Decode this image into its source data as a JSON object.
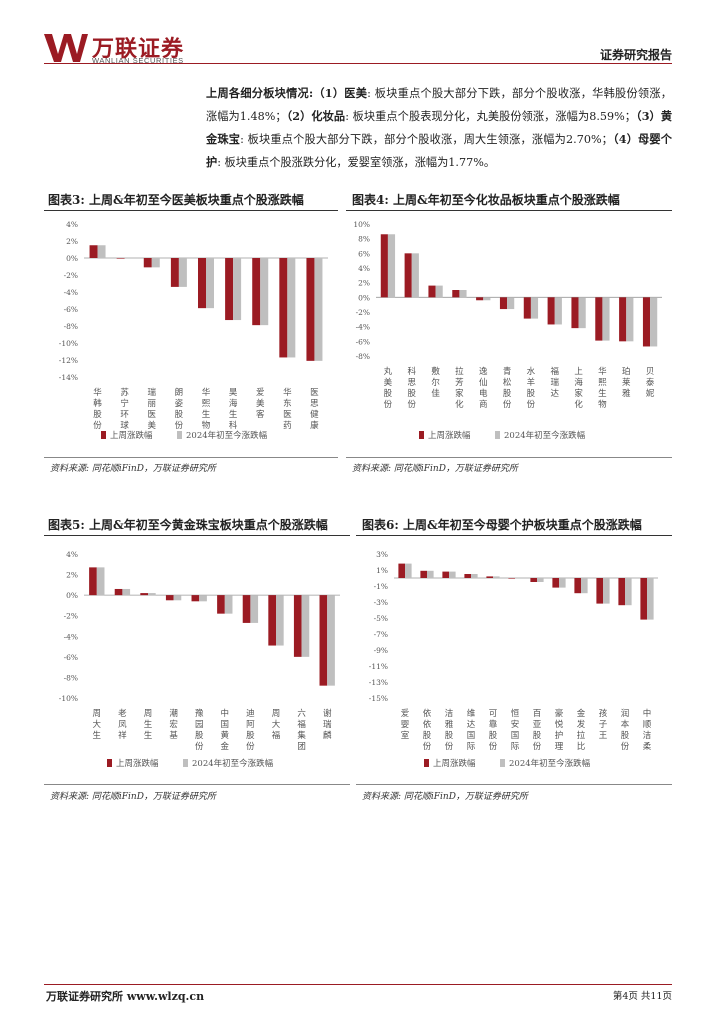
{
  "header": {
    "logo_cn": "万联证券",
    "logo_en": "WANLIAN SECURITIES",
    "report_type": "证券研究报告"
  },
  "colors": {
    "brand": "#9b1b23",
    "series_week": "#9b1b23",
    "series_ytd": "#bfbfbf"
  },
  "summary": {
    "lead": "上周各细分板块情况:",
    "p1_tag": "（1）医美",
    "p1_text": ": 板块重点个股大部分下跌，部分个股收涨，华韩股份领涨，涨幅为1.48%；",
    "p2_tag": "（2）化妆品",
    "p2_text": ": 板块重点个股表现分化，丸美股份领涨，涨幅为8.59%；",
    "p3_tag": "（3）黄金珠宝",
    "p3_text": ": 板块重点个股大部分下跌，部分个股收涨，周大生领涨，涨幅为2.70%；",
    "p4_tag": "（4）母婴个护",
    "p4_text": ": 板块重点个股涨跌分化，爱婴室领涨，涨幅为1.77%。"
  },
  "figures": [
    {
      "title": "图表3:  上周&年初至今医美板块重点个股涨跌幅",
      "source": "资料来源: 同花顺iFinD，万联证券研究所"
    },
    {
      "title": "图表4:  上周&年初至今化妆品板块重点个股涨跌幅",
      "source": "资料来源: 同花顺iFinD，万联证券研究所"
    },
    {
      "title": "图表5:  上周&年初至今黄金珠宝板块重点个股涨跌幅",
      "source": "资料来源: 同花顺iFinD，万联证券研究所"
    },
    {
      "title": "图表6:  上周&年初至今母婴个护板块重点个股涨跌幅",
      "source": "资料来源: 同花顺iFinD，万联证券研究所"
    }
  ],
  "chart_data": [
    {
      "type": "bar",
      "title": "上周&年初至今医美板块重点个股涨跌幅",
      "categories": [
        "华韩股份",
        "苏宁环球",
        "瑞丽医美",
        "朗姿股份",
        "华熙生物",
        "昊海生科",
        "爱美客",
        "华东医药",
        "医思健康"
      ],
      "series": [
        {
          "name": "上周涨跌幅",
          "values": [
            1.5,
            0.0,
            -1.1,
            -3.4,
            -5.9,
            -7.3,
            -7.9,
            -11.7,
            -12.1
          ]
        },
        {
          "name": "2024年初至今涨跌幅",
          "values": [
            1.5,
            0.0,
            -1.1,
            -3.4,
            -5.9,
            -7.3,
            -7.9,
            -11.7,
            -12.1
          ]
        }
      ],
      "ylim": [
        -14,
        4
      ],
      "yticks": [
        4,
        2,
        0,
        -2,
        -4,
        -6,
        -8,
        -10,
        -12,
        -14
      ],
      "ytick_labels": [
        "4%",
        "2%",
        "0%",
        "-2%",
        "-4%",
        "-6%",
        "-8%",
        "-10%",
        "-12%",
        "-14%"
      ],
      "legend": "bottom"
    },
    {
      "type": "bar",
      "title": "上周&年初至今化妆品板块重点个股涨跌幅",
      "categories": [
        "丸美股份",
        "科思股份",
        "敷尔佳",
        "拉芳家化",
        "逸仙电商",
        "青松股份",
        "水羊股份",
        "福瑞达",
        "上海家化",
        "华熙生物",
        "珀莱雅",
        "贝泰妮"
      ],
      "series": [
        {
          "name": "上周涨跌幅",
          "values": [
            8.6,
            6.0,
            1.6,
            1.0,
            -0.4,
            -1.6,
            -2.9,
            -3.7,
            -4.2,
            -5.9,
            -6.0,
            -6.7
          ]
        },
        {
          "name": "2024年初至今涨跌幅",
          "values": [
            8.6,
            6.0,
            1.6,
            1.0,
            -0.4,
            -1.6,
            -2.9,
            -3.7,
            -4.2,
            -5.9,
            -6.0,
            -6.7
          ]
        }
      ],
      "ylim": [
        -8,
        10
      ],
      "yticks": [
        10,
        8,
        6,
        4,
        2,
        0,
        -2,
        -4,
        -6,
        -8
      ],
      "ytick_labels": [
        "10%",
        "8%",
        "6%",
        "4%",
        "2%",
        "0%",
        "-2%",
        "-4%",
        "-6%",
        "-8%"
      ],
      "legend": "bottom"
    },
    {
      "type": "bar",
      "title": "上周&年初至今黄金珠宝板块重点个股涨跌幅",
      "categories": [
        "周大生",
        "老凤祥",
        "周生生",
        "潮宏基",
        "豫园股份",
        "中国黄金",
        "迪阿股份",
        "周大福",
        "六福集团",
        "谢瑞麟"
      ],
      "series": [
        {
          "name": "上周涨跌幅",
          "values": [
            2.7,
            0.6,
            0.2,
            -0.5,
            -0.6,
            -1.8,
            -2.7,
            -4.9,
            -6.0,
            -8.8
          ]
        },
        {
          "name": "2024年初至今涨跌幅",
          "values": [
            2.7,
            0.6,
            0.2,
            -0.5,
            -0.6,
            -1.8,
            -2.7,
            -4.9,
            -6.0,
            -8.8
          ]
        }
      ],
      "ylim": [
        -10,
        4
      ],
      "yticks": [
        4,
        2,
        0,
        -2,
        -4,
        -6,
        -8,
        -10
      ],
      "ytick_labels": [
        "4%",
        "2%",
        "0%",
        "-2%",
        "-4%",
        "-6%",
        "-8%",
        "-10%"
      ],
      "legend": "bottom"
    },
    {
      "type": "bar",
      "title": "上周&年初至今母婴个护板块重点个股涨跌幅",
      "categories": [
        "爱婴室",
        "依依股份",
        "洁雅股份",
        "维达国际",
        "可靠股份",
        "恒安国际",
        "百亚股份",
        "豪悦护理",
        "金发拉比",
        "孩子王",
        "润本股份",
        "中顺洁柔"
      ],
      "series": [
        {
          "name": "上周涨跌幅",
          "values": [
            1.8,
            0.9,
            0.8,
            0.5,
            0.2,
            0.0,
            -0.5,
            -1.2,
            -1.9,
            -3.2,
            -3.4,
            -5.2
          ]
        },
        {
          "name": "2024年初至今涨跌幅",
          "values": [
            1.8,
            0.9,
            0.8,
            0.5,
            0.2,
            0.0,
            -0.5,
            -1.2,
            -1.9,
            -3.2,
            -3.4,
            -5.2
          ]
        }
      ],
      "ylim": [
        -15,
        3
      ],
      "yticks": [
        3,
        1,
        -1,
        -3,
        -5,
        -7,
        -9,
        -11,
        -13,
        -15
      ],
      "ytick_labels": [
        "3%",
        "1%",
        "-1%",
        "-3%",
        "-5%",
        "-7%",
        "-9%",
        "-11%",
        "-13%",
        "-15%"
      ],
      "legend": "bottom"
    }
  ],
  "footer": {
    "left": "万联证券研究所  www.wlzq.cn",
    "right": "第4页 共11页"
  }
}
